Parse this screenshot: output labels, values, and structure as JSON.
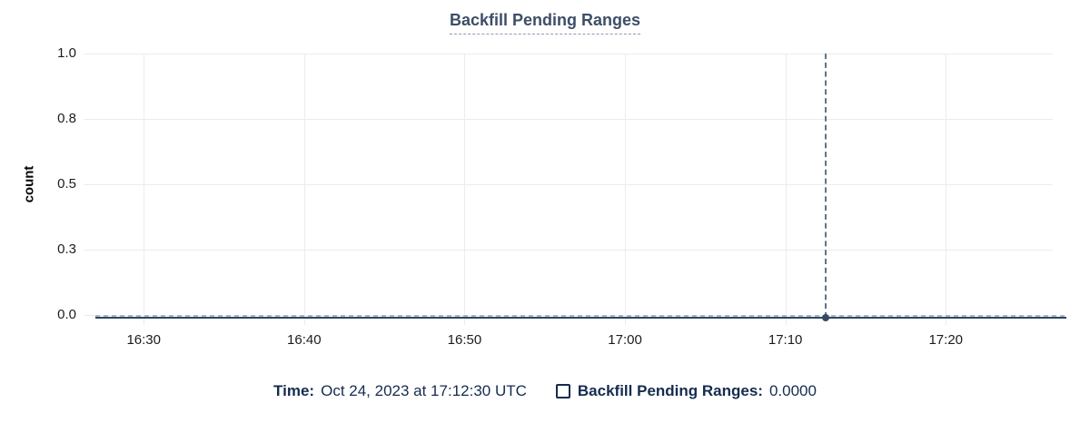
{
  "title": {
    "text": "Backfill Pending Ranges"
  },
  "y_axis_label": "count",
  "legend": {
    "time_label": "Time:",
    "time_value": "Oct 24, 2023 at 17:12:30 UTC",
    "series_label": "Backfill Pending Ranges:",
    "series_value": "0.0000"
  },
  "colors": {
    "series": "#2b4661",
    "crosshair": "#5d7588",
    "ruler_dash": "#aab9c8",
    "grid": "#ececec",
    "title_text": "#3e4e68",
    "title_underline": "#8d9aae",
    "legend_text": "#152c50",
    "tick_text": "#1c1c1c",
    "dot": "#374a63"
  },
  "chart_data": {
    "type": "line",
    "title": "Backfill Pending Ranges",
    "xlabel": "",
    "ylabel": "count",
    "ylim": [
      0,
      1
    ],
    "grid": true,
    "legend_position": "bottom",
    "x_domain": [
      "16:26:15",
      "17:26:40"
    ],
    "x_ticks": [
      "16:30",
      "16:40",
      "16:50",
      "17:00",
      "17:10",
      "17:20"
    ],
    "y_ticks": [
      {
        "value": 0,
        "label": "0.0"
      },
      {
        "value": 0.25,
        "label": "0.3"
      },
      {
        "value": 0.5,
        "label": "0.5"
      },
      {
        "value": 0.75,
        "label": "0.8"
      },
      {
        "value": 1,
        "label": "1.0"
      }
    ],
    "series": [
      {
        "name": "Backfill Pending Ranges",
        "points": [
          {
            "x": "16:27:00",
            "y": 0
          },
          {
            "x": "17:27:30",
            "y": 0
          }
        ]
      }
    ],
    "cursor": {
      "x": "17:12:30",
      "y": 0,
      "date_label": "Oct 24, 2023 at 17:12:30 UTC",
      "value_label": "0.0000"
    }
  }
}
